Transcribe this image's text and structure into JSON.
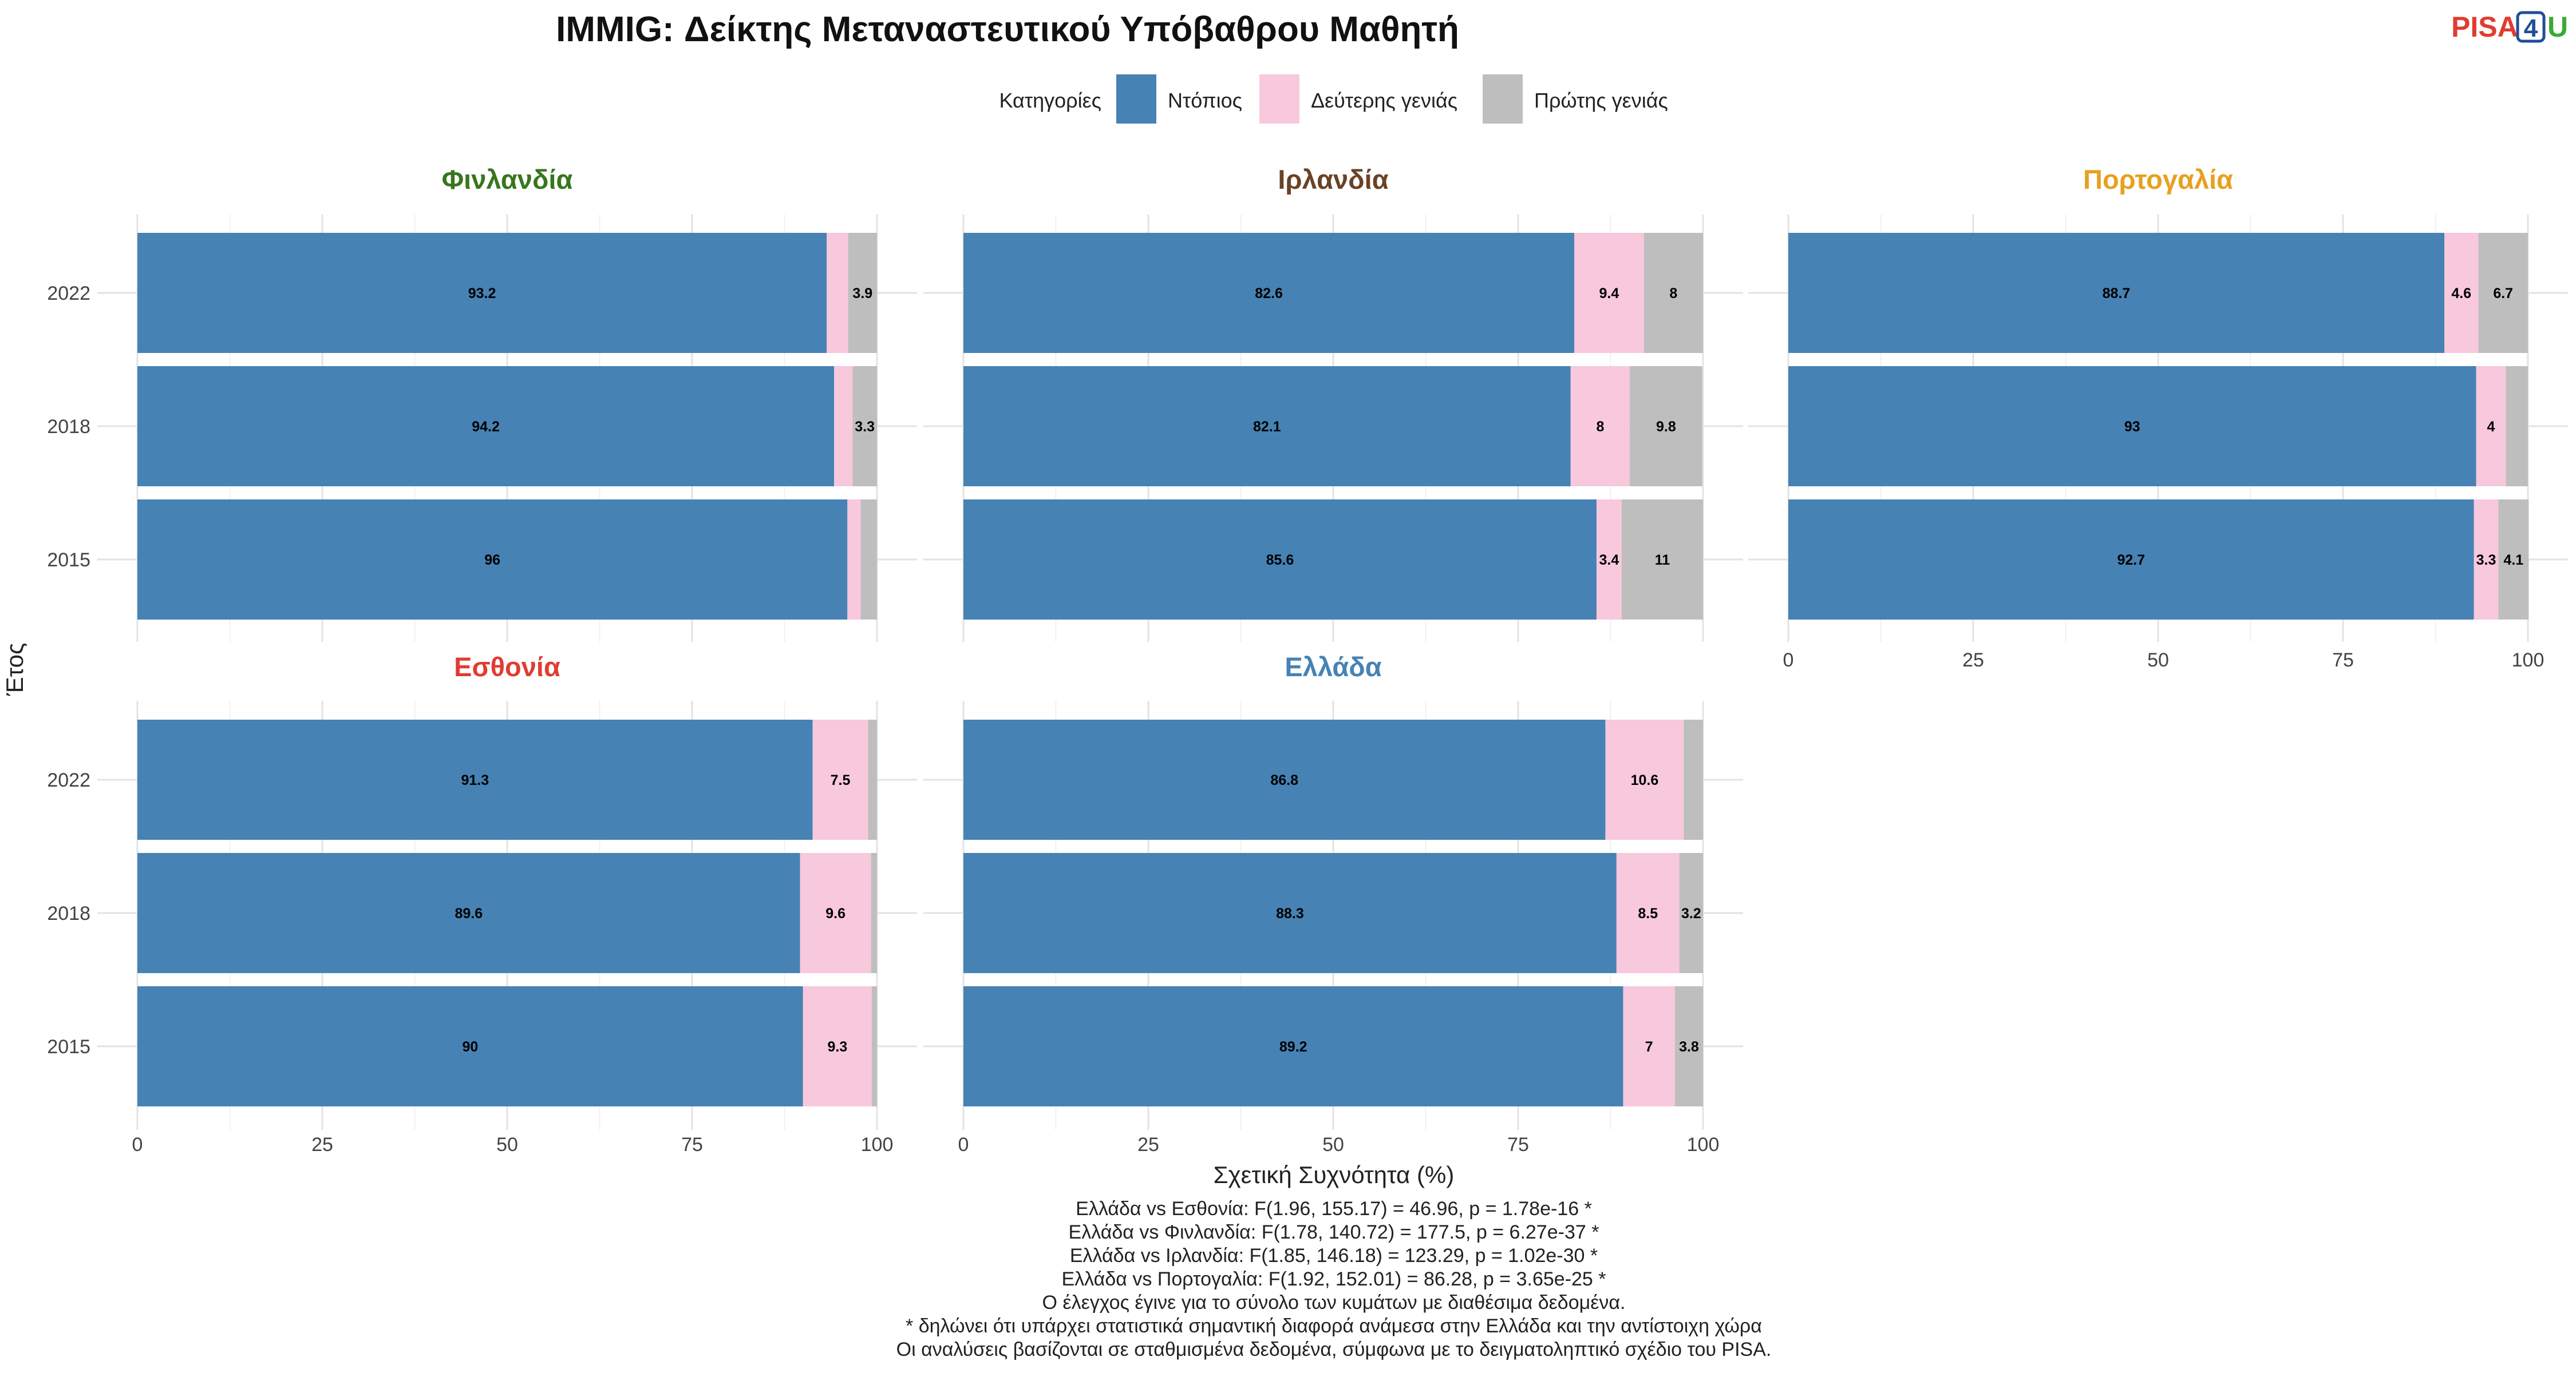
{
  "chart_data": {
    "type": "bar",
    "orientation": "horizontal",
    "stacked": true,
    "title": "IMMIG: Δείκτης Μεταναστευτικού Υπόβαθρου Μαθητή",
    "xlabel": "Σχετική Συχνότητα (%)",
    "ylabel": "Έτος",
    "xlim": [
      0,
      100
    ],
    "xticks": [
      "0",
      "25",
      "50",
      "75",
      "100"
    ],
    "categories": [
      "2022",
      "2018",
      "2015"
    ],
    "legend": {
      "title": "Κατηγορίες",
      "placement": "top-center",
      "items": [
        {
          "name": "Ντόπιος",
          "color": "#4682B4"
        },
        {
          "name": "Δεύτερης γενιάς",
          "color": "#F8C8DC"
        },
        {
          "name": "Πρώτης γενιάς",
          "color": "#BEBEBE"
        }
      ]
    },
    "panels": [
      {
        "name": "Φινλανδία",
        "color": "#38761D",
        "values": {
          "2022": [
            93.2,
            2.9,
            3.9
          ],
          "2018": [
            94.2,
            2.5,
            3.3
          ],
          "2015": [
            96,
            1.8,
            2.2
          ]
        },
        "labels": {
          "2022": [
            "93.2",
            "",
            "3.9"
          ],
          "2018": [
            "94.2",
            "",
            "3.3"
          ],
          "2015": [
            "96",
            "",
            ""
          ]
        }
      },
      {
        "name": "Ιρλανδία",
        "color": "#6B4226",
        "values": {
          "2022": [
            82.6,
            9.4,
            8
          ],
          "2018": [
            82.1,
            8,
            9.8
          ],
          "2015": [
            85.6,
            3.4,
            11
          ]
        },
        "labels": {
          "2022": [
            "82.6",
            "9.4",
            "8"
          ],
          "2018": [
            "82.1",
            "8",
            "9.8"
          ],
          "2015": [
            "85.6",
            "3.4",
            "11"
          ]
        }
      },
      {
        "name": "Πορτογαλία",
        "color": "#E6A11F",
        "values": {
          "2022": [
            88.7,
            4.6,
            6.7
          ],
          "2018": [
            93,
            4,
            3
          ],
          "2015": [
            92.7,
            3.3,
            4.1
          ]
        },
        "labels": {
          "2022": [
            "88.7",
            "4.6",
            "6.7"
          ],
          "2018": [
            "93",
            "4",
            ""
          ],
          "2015": [
            "92.7",
            "3.3",
            "4.1"
          ]
        }
      },
      {
        "name": "Εσθονία",
        "color": "#E03C31",
        "values": {
          "2022": [
            91.3,
            7.5,
            1.2
          ],
          "2018": [
            89.6,
            9.6,
            0.8
          ],
          "2015": [
            90,
            9.3,
            0.7
          ]
        },
        "labels": {
          "2022": [
            "91.3",
            "7.5",
            ""
          ],
          "2018": [
            "89.6",
            "9.6",
            ""
          ],
          "2015": [
            "90",
            "9.3",
            ""
          ]
        }
      },
      {
        "name": "Ελλάδα",
        "color": "#4682B4",
        "values": {
          "2022": [
            86.8,
            10.6,
            2.6
          ],
          "2018": [
            88.3,
            8.5,
            3.2
          ],
          "2015": [
            89.2,
            7,
            3.8
          ]
        },
        "labels": {
          "2022": [
            "86.8",
            "10.6",
            ""
          ],
          "2018": [
            "88.3",
            "8.5",
            "3.2"
          ],
          "2015": [
            "89.2",
            "7",
            "3.8"
          ]
        }
      }
    ],
    "footnotes": [
      "Ελλάδα vs Εσθονία: F(1.96, 155.17) = 46.96, p = 1.78e-16 *",
      "Ελλάδα vs Φινλανδία: F(1.78, 140.72) = 177.5, p = 6.27e-37 *",
      "Ελλάδα vs Ιρλανδία: F(1.85, 146.18) = 123.29, p = 1.02e-30 *",
      "Ελλάδα vs Πορτογαλία: F(1.92, 152.01) = 86.28, p = 3.65e-25 *",
      "Ο έλεγχος έγινε για το σύνολο των κυμάτων με διαθέσιμα δεδομένα.",
      "* δηλώνει ότι υπάρχει στατιστικά σημαντική διαφορά ανάμεσα στην Ελλάδα και την αντίστοιχη χώρα",
      "Οι αναλύσεις βασίζονται σε σταθμισμένα δεδομένα, σύμφωνα με το δειγματοληπτικό σχέδιο του PISA."
    ],
    "grid": true
  },
  "logo": {
    "text_a": "PISA",
    "text_b": "4",
    "text_c": "U",
    "color_a": "#E03C31",
    "color_b": "#1F4E9A",
    "color_c": "#3AAA35"
  }
}
